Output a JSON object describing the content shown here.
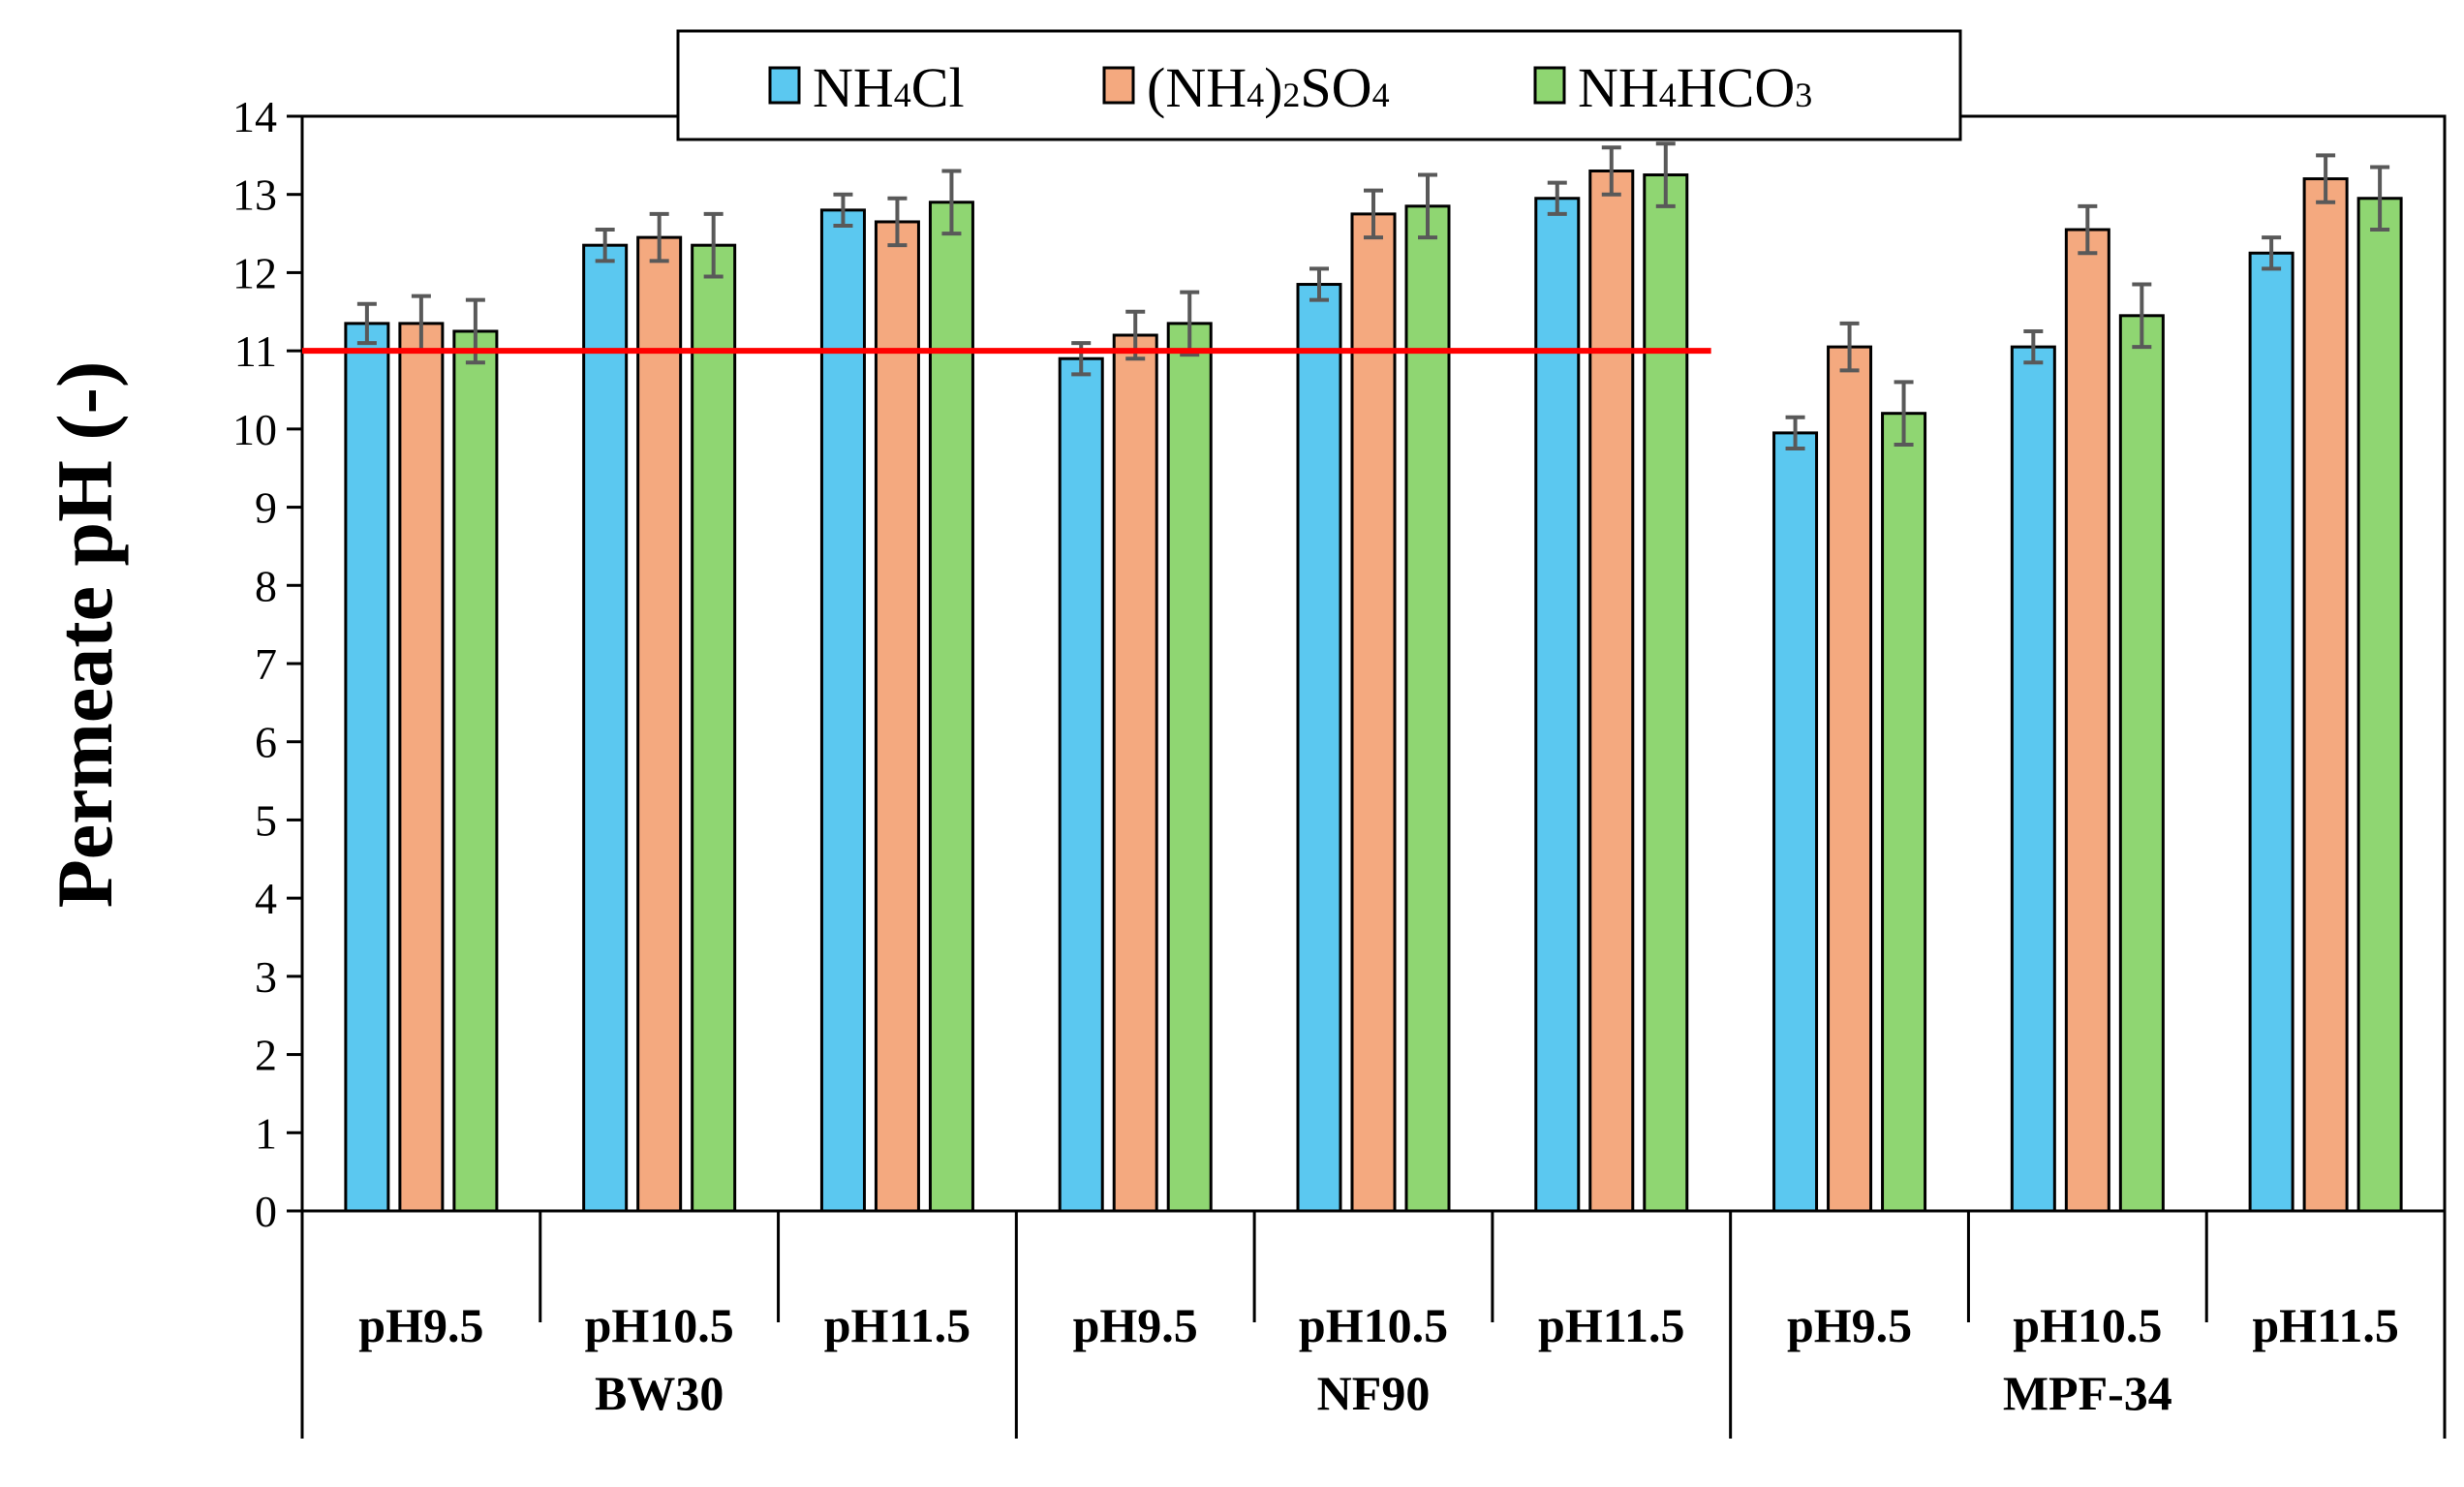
{
  "chart_data": {
    "type": "bar",
    "title": "",
    "ylabel": "Permeate pH (-)",
    "xlabel": "",
    "ylim": [
      0,
      14
    ],
    "yticks": [
      0,
      1,
      2,
      3,
      4,
      5,
      6,
      7,
      8,
      9,
      10,
      11,
      12,
      13,
      14
    ],
    "groups": [
      "BW30",
      "NF90",
      "MPF-34"
    ],
    "categories": [
      "pH9.5",
      "pH10.5",
      "pH11.5",
      "pH9.5",
      "pH10.5",
      "pH11.5",
      "pH9.5",
      "pH10.5",
      "pH11.5"
    ],
    "series": [
      {
        "name": "NH4Cl",
        "legend_base": "NH",
        "legend_sub1": "4",
        "legend_rest": "Cl",
        "legend_sub2": "",
        "legend_tail": "",
        "color": "#5bc8f0",
        "values": [
          11.35,
          12.35,
          12.8,
          10.9,
          11.85,
          12.95,
          9.95,
          11.05,
          12.25
        ],
        "errors": [
          0.25,
          0.2,
          0.2,
          0.2,
          0.2,
          0.2,
          0.2,
          0.2,
          0.2
        ]
      },
      {
        "name": "(NH4)2SO4",
        "legend_base": "(NH",
        "legend_sub1": "4",
        "legend_rest": ")",
        "legend_sub2": "2",
        "legend_tail": "SO4",
        "color": "#f4a97f",
        "values": [
          11.35,
          12.45,
          12.65,
          11.2,
          12.75,
          13.3,
          11.05,
          12.55,
          13.2
        ],
        "errors": [
          0.35,
          0.3,
          0.3,
          0.3,
          0.3,
          0.3,
          0.3,
          0.3,
          0.3
        ]
      },
      {
        "name": "NH4HCO3",
        "legend_base": "NH",
        "legend_sub1": "4",
        "legend_rest": "HCO",
        "legend_sub2": "3",
        "legend_tail": "",
        "color": "#8fd672",
        "values": [
          11.25,
          12.35,
          12.9,
          11.35,
          12.85,
          13.25,
          10.2,
          11.45,
          12.95
        ],
        "errors": [
          0.4,
          0.4,
          0.4,
          0.4,
          0.4,
          0.4,
          0.4,
          0.4,
          0.4
        ]
      }
    ],
    "reference_line": {
      "value": 11,
      "color": "#ff0000",
      "spans_groups": [
        "BW30",
        "NF90"
      ]
    },
    "legend_position": "top-center",
    "grid": false
  }
}
